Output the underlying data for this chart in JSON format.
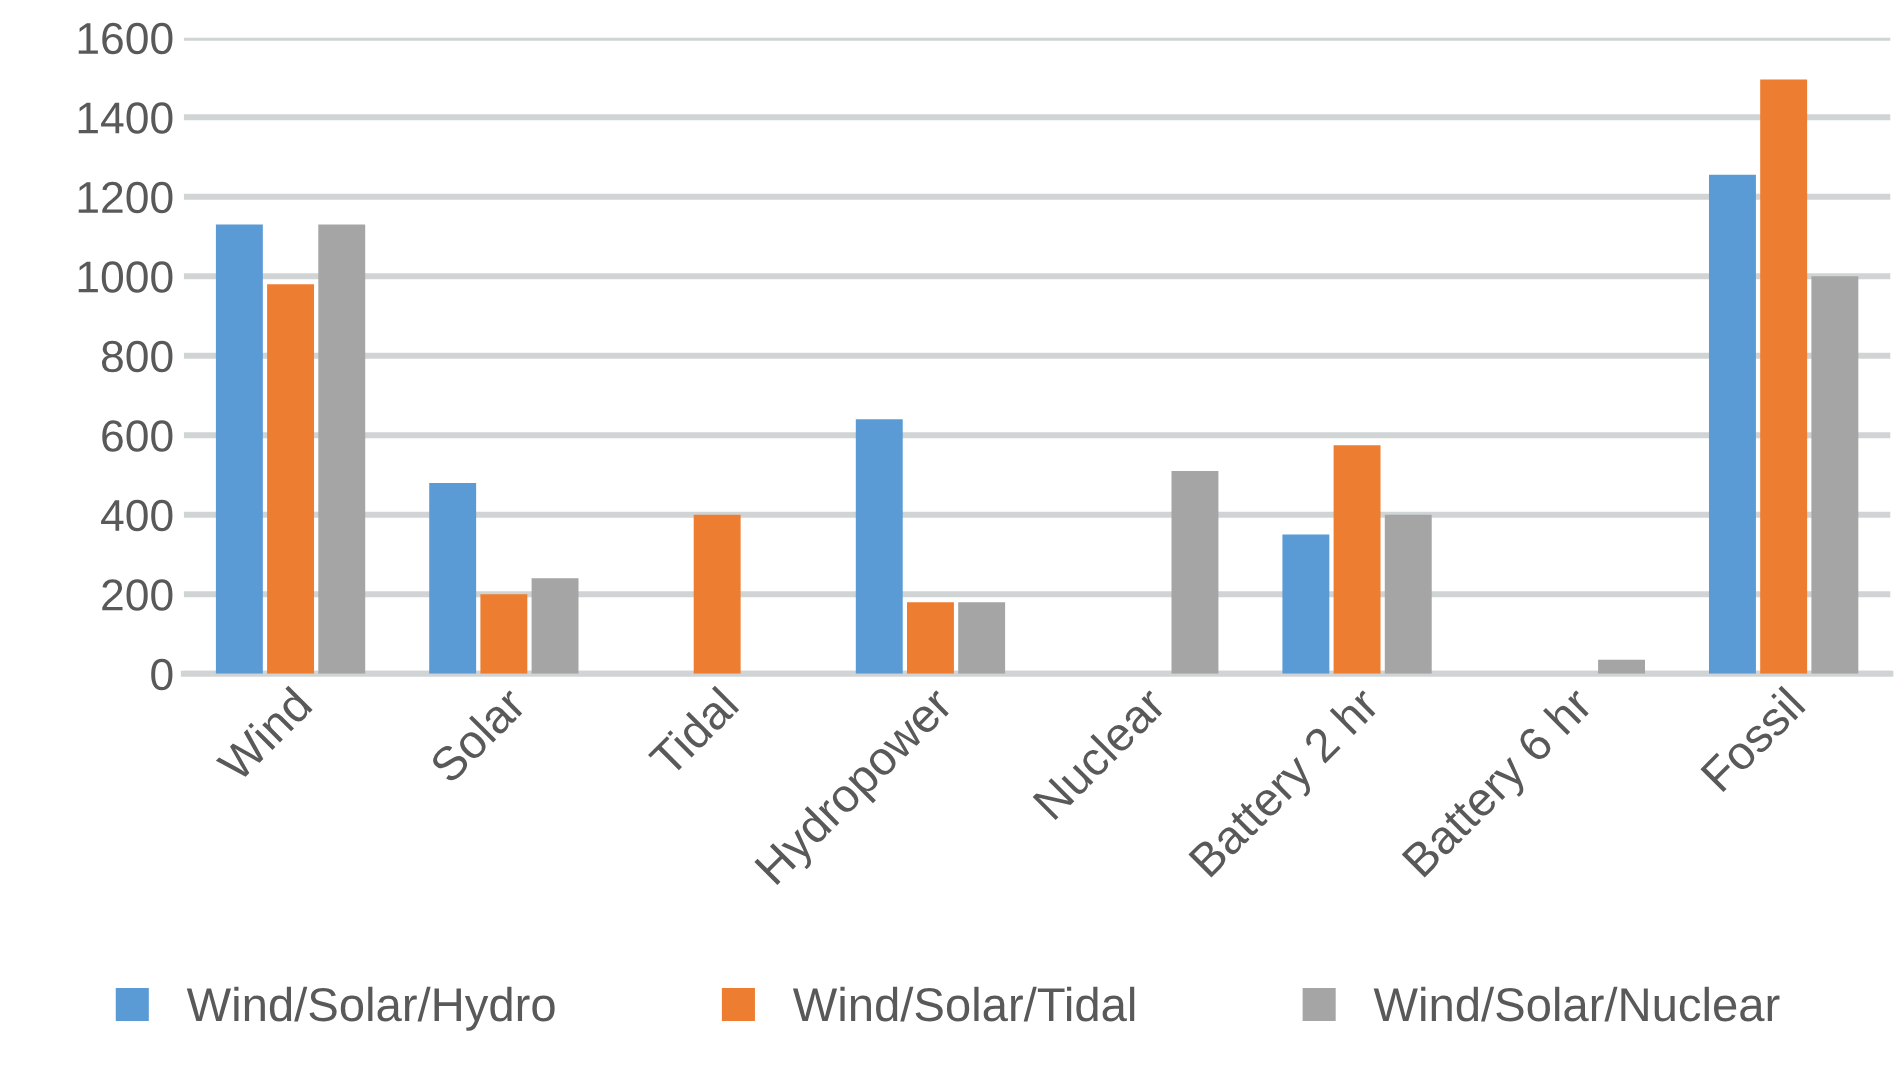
{
  "chart_data": {
    "type": "bar",
    "categories": [
      "Wind",
      "Solar",
      "Tidal",
      "Hydropower",
      "Nuclear",
      "Battery 2 hr",
      "Battery 6 hr",
      "Fossil"
    ],
    "series": [
      {
        "name": "Wind/Solar/Hydro",
        "color": "#5b9bd5",
        "values": [
          1130,
          480,
          null,
          640,
          null,
          350,
          null,
          1255
        ]
      },
      {
        "name": "Wind/Solar/Tidal",
        "color": "#ed7d31",
        "values": [
          980,
          200,
          400,
          180,
          null,
          575,
          null,
          1495
        ]
      },
      {
        "name": "Wind/Solar/Nuclear",
        "color": "#a5a5a5",
        "values": [
          1130,
          240,
          null,
          180,
          510,
          400,
          35,
          1000
        ]
      }
    ],
    "ylim": [
      0,
      1600
    ],
    "yticks": [
      0,
      200,
      400,
      600,
      800,
      1000,
      1200,
      1400,
      1600
    ],
    "grid": "y",
    "legend": "bottom"
  }
}
